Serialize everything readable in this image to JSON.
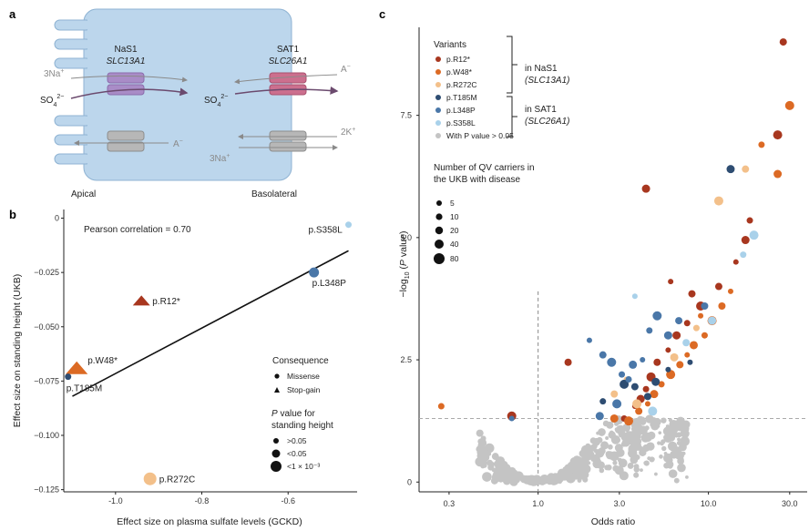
{
  "panel_a": {
    "letter": "a",
    "nas1": {
      "name": "NaS1",
      "gene": "SLC13A1"
    },
    "sat1": {
      "name": "SAT1",
      "gene": "SLC26A1"
    },
    "ions": {
      "na3_left": "3Na",
      "na3_left_sup": "+",
      "so4_left": "SO",
      "so4_left_sub": "4",
      "so4_left_sup": "2−",
      "a_left": "A",
      "a_left_sup": "−",
      "a_right": "A",
      "a_right_sup": "−",
      "so4_right": "SO",
      "so4_right_sub": "4",
      "so4_right_sup": "2−",
      "k2": "2K",
      "k2_sup": "+",
      "na3_right": "3Na",
      "na3_right_sup": "+"
    },
    "apical": "Apical",
    "basolateral": "Basolateral",
    "colors": {
      "cell": "#bcd6ec",
      "nas1": "#a98cc7",
      "sat1": "#cc6f8e",
      "pump": "#b7b7b7"
    }
  },
  "panel_b": {
    "letter": "b",
    "annotation": "Pearson correlation = 0.70",
    "legend_consequence_title": "Consequence",
    "legend_consequence": [
      "Missense",
      "Stop-gain"
    ],
    "legend_p_title_line1": "P value for",
    "legend_p_title_line2": "standing height",
    "legend_p_title_italic": "P",
    "legend_p_title_rest": " value for",
    "legend_p": [
      ">0.05",
      "<0.05",
      "<1 × 10⁻³"
    ],
    "chart_data": {
      "type": "scatter",
      "xlabel": "Effect size on plasma sulfate levels (GCKD)",
      "ylabel": "Effect size on standing height (UKB)",
      "xlim": [
        -1.12,
        -0.44
      ],
      "ylim": [
        -0.126,
        0.004
      ],
      "xticks": [
        "-1.0",
        "-0.8",
        "-0.6"
      ],
      "xtick_values": [
        -1.0,
        -0.8,
        -0.6
      ],
      "yticks": [
        "0",
        "-0.025",
        "-0.050",
        "-0.075",
        "-0.100",
        "-0.125"
      ],
      "ytick_values": [
        0,
        -0.025,
        -0.05,
        -0.075,
        -0.1,
        -0.125
      ],
      "fit_line": {
        "x": [
          -1.1,
          -0.46
        ],
        "y": [
          -0.082,
          -0.015
        ]
      },
      "points": [
        {
          "label": "p.S358L",
          "x": -0.46,
          "y": -0.003,
          "shape": "circle",
          "size": "small",
          "color": "#a9d1ea"
        },
        {
          "label": "p.L348P",
          "x": -0.54,
          "y": -0.025,
          "shape": "circle",
          "size": "medium",
          "color": "#4a77a8"
        },
        {
          "label": "p.R12*",
          "x": -0.94,
          "y": -0.038,
          "shape": "triangle",
          "size": "medium",
          "color": "#a8371f"
        },
        {
          "label": "p.W48*",
          "x": -1.09,
          "y": -0.069,
          "shape": "triangle",
          "size": "large",
          "color": "#dc6a24"
        },
        {
          "label": "p.T185M",
          "x": -1.11,
          "y": -0.073,
          "shape": "circle",
          "size": "small",
          "color": "#2e4d72"
        },
        {
          "label": "p.R272C",
          "x": -0.92,
          "y": -0.12,
          "shape": "circle",
          "size": "large",
          "color": "#f3c08a"
        }
      ]
    }
  },
  "panel_c": {
    "letter": "c",
    "legend_variants_title": "Variants",
    "variants": [
      {
        "label": "p.R12*",
        "color": "#a8371f"
      },
      {
        "label": "p.W48*",
        "color": "#dc6a24"
      },
      {
        "label": "p.R272C",
        "color": "#f3c08a"
      },
      {
        "label": "p.T185M",
        "color": "#2e4d72"
      },
      {
        "label": "p.L348P",
        "color": "#4a77a8"
      },
      {
        "label": "p.S358L",
        "color": "#a9d1ea"
      },
      {
        "label": "With P value > 0.05",
        "color": "#c4c4c4"
      }
    ],
    "bracket1_line1": "in NaS1",
    "bracket1_line2": "(SLC13A1)",
    "bracket2_line1": "in SAT1",
    "bracket2_line2": "(SLC26A1)",
    "size_title_line1": "Number of QV carriers in",
    "size_title_line2": "the UKB with disease",
    "size_legend": [
      "5",
      "10",
      "20",
      "40",
      "80"
    ],
    "chart_data": {
      "type": "scatter",
      "xlabel": "Odds ratio",
      "ylabel": "−log10 (P value)",
      "x_scale": "log",
      "xlim": [
        0.2,
        38
      ],
      "ylim": [
        -0.2,
        9.3
      ],
      "xticks": [
        "0.3",
        "1.0",
        "3.0",
        "10.0",
        "30.0"
      ],
      "xtick_values": [
        0.3,
        1.0,
        3.0,
        10.0,
        30.0
      ],
      "yticks": [
        "0",
        "2.5",
        "5.0",
        "7.5"
      ],
      "ytick_values": [
        0,
        2.5,
        5.0,
        7.5
      ],
      "reference_lines": {
        "x": 1.0,
        "y": 1.3
      },
      "series": [
        {
          "name": "p.R12*",
          "color": "#a8371f",
          "points": [
            [
              27.5,
              9.0
            ],
            [
              25.5,
              7.1
            ],
            [
              17.5,
              5.35
            ],
            [
              16.5,
              4.95
            ],
            [
              14.5,
              4.5
            ],
            [
              11.5,
              4.0
            ],
            [
              9.0,
              3.6
            ],
            [
              7.5,
              3.25
            ],
            [
              6.5,
              3.0
            ],
            [
              5.8,
              2.7
            ],
            [
              5.0,
              2.45
            ],
            [
              4.6,
              2.15
            ],
            [
              4.3,
              1.9
            ],
            [
              4.0,
              1.7
            ],
            [
              3.7,
              1.55
            ],
            [
              1.5,
              2.45
            ],
            [
              0.7,
              1.35
            ],
            [
              3.2,
              1.3
            ],
            [
              4.3,
              6.0
            ],
            [
              6.0,
              4.1
            ],
            [
              8.0,
              3.85
            ]
          ]
        },
        {
          "name": "p.W48*",
          "color": "#dc6a24",
          "points": [
            [
              30.0,
              7.7
            ],
            [
              20.5,
              6.9
            ],
            [
              25.5,
              6.3
            ],
            [
              13.5,
              3.9
            ],
            [
              12.0,
              3.6
            ],
            [
              10.5,
              3.3
            ],
            [
              9.5,
              3.0
            ],
            [
              8.2,
              2.8
            ],
            [
              7.5,
              2.6
            ],
            [
              6.8,
              2.4
            ],
            [
              6.0,
              2.2
            ],
            [
              5.3,
              2.0
            ],
            [
              4.8,
              1.8
            ],
            [
              4.4,
              1.6
            ],
            [
              3.9,
              1.45
            ],
            [
              3.4,
              1.25
            ],
            [
              0.27,
              1.55
            ],
            [
              2.8,
              1.3
            ],
            [
              9.0,
              3.4
            ]
          ]
        },
        {
          "name": "p.R272C",
          "color": "#f3c08a",
          "points": [
            [
              16.5,
              6.4
            ],
            [
              11.5,
              5.75
            ],
            [
              8.5,
              3.15
            ],
            [
              6.3,
              2.55
            ],
            [
              3.3,
              2.1
            ],
            [
              2.8,
              1.8
            ],
            [
              3.8,
              1.6
            ],
            [
              10.5,
              3.3
            ]
          ]
        },
        {
          "name": "p.T185M",
          "color": "#2e4d72",
          "points": [
            [
              13.5,
              6.4
            ],
            [
              5.8,
              2.3
            ],
            [
              4.4,
              1.75
            ],
            [
              3.2,
              2.0
            ],
            [
              2.4,
              1.65
            ],
            [
              4.9,
              2.05
            ],
            [
              7.8,
              2.45
            ],
            [
              3.7,
              1.95
            ]
          ]
        },
        {
          "name": "p.L348P",
          "color": "#4a77a8",
          "points": [
            [
              5.0,
              3.4
            ],
            [
              4.5,
              3.1
            ],
            [
              5.8,
              3.0
            ],
            [
              2.0,
              2.9
            ],
            [
              2.4,
              2.6
            ],
            [
              2.7,
              2.45
            ],
            [
              3.1,
              2.2
            ],
            [
              3.6,
              2.4
            ],
            [
              4.1,
              2.5
            ],
            [
              6.7,
              3.3
            ],
            [
              2.9,
              1.6
            ],
            [
              3.4,
              2.1
            ],
            [
              2.3,
              1.35
            ],
            [
              0.7,
              1.3
            ],
            [
              9.5,
              3.6
            ]
          ]
        },
        {
          "name": "p.S358L",
          "color": "#a9d1ea",
          "points": [
            [
              18.5,
              5.05
            ],
            [
              16.0,
              4.65
            ],
            [
              10.5,
              3.3
            ],
            [
              3.7,
              3.8
            ],
            [
              7.4,
              2.85
            ],
            [
              4.7,
              1.45
            ]
          ]
        }
      ]
    }
  }
}
